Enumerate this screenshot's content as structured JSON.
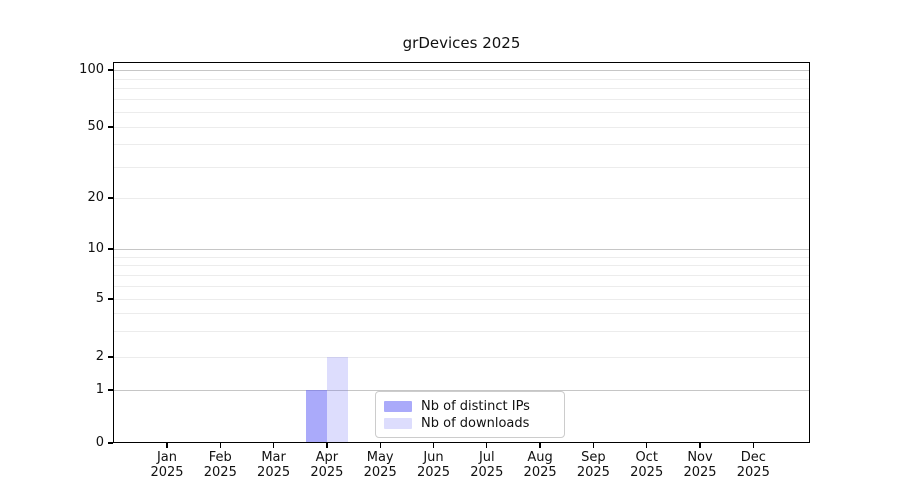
{
  "title": "grDevices 2025",
  "chart_data": {
    "type": "bar",
    "title": "grDevices 2025",
    "x_year": "2025",
    "categories": [
      "Jan",
      "Feb",
      "Mar",
      "Apr",
      "May",
      "Jun",
      "Jul",
      "Aug",
      "Sep",
      "Oct",
      "Nov",
      "Dec"
    ],
    "series": [
      {
        "name": "Nb of distinct IPs",
        "color": "rgba(100,100,245,0.55)",
        "solid_color": "#aaaaf7",
        "values": [
          0,
          0,
          0,
          1,
          0,
          0,
          0,
          0,
          0,
          0,
          0,
          0
        ]
      },
      {
        "name": "Nb of downloads",
        "color": "rgba(100,100,245,0.22)",
        "solid_color": "#dcdcf9",
        "values": [
          0,
          0,
          0,
          2,
          0,
          0,
          0,
          0,
          0,
          0,
          0,
          0
        ]
      }
    ],
    "y_axis": {
      "tick_values": [
        0,
        1,
        2,
        5,
        10,
        20,
        50,
        100
      ],
      "tick_labels": [
        "0",
        "1",
        "2",
        "5",
        "10",
        "20",
        "50",
        "100"
      ],
      "scale": "log-like above 1, zero baseline",
      "range": [
        0,
        100
      ],
      "major_gridline_values": [
        1,
        10,
        100
      ],
      "minor_gridline_values": [
        2,
        3,
        4,
        5,
        6,
        7,
        8,
        9,
        20,
        30,
        40,
        50,
        60,
        70,
        80,
        90
      ]
    },
    "grid": "horizontal",
    "legend": {
      "position": "bottom-center-inside",
      "entries": [
        "Nb of distinct IPs",
        "Nb of downloads"
      ]
    },
    "colors": {
      "major_gridline": "#c6c6c6",
      "minor_gridline": "#ececec",
      "spine": "#000000",
      "background": "#ffffff"
    }
  }
}
